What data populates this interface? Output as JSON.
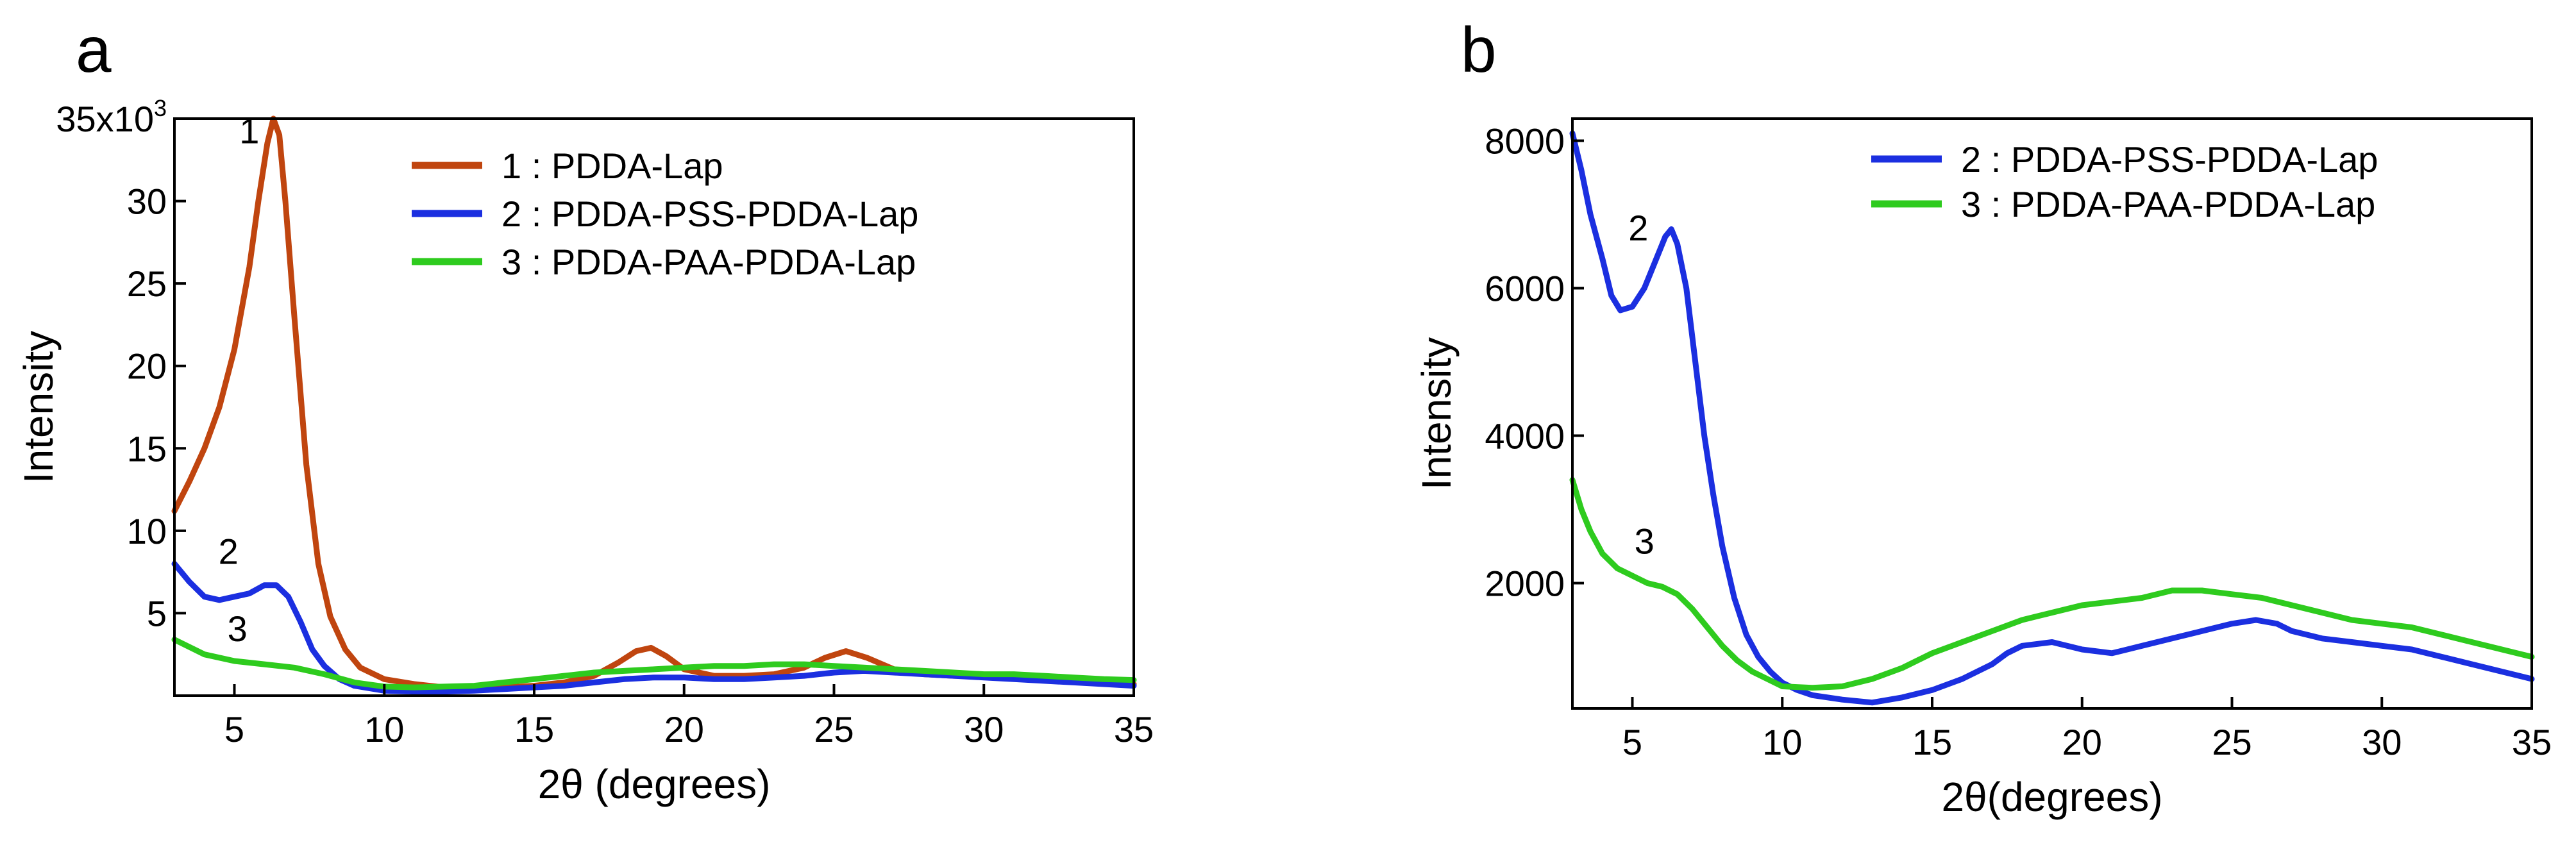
{
  "chart_data": [
    {
      "panel_label": "a",
      "type": "line",
      "xlabel_prefix": "2",
      "xlabel_symbol": "θ",
      "xlabel_suffix": " (degrees)",
      "ylabel": "Intensity",
      "xlim": [
        3,
        35
      ],
      "ylim": [
        0,
        35000
      ],
      "x_ticks": [
        5,
        10,
        15,
        20,
        25,
        30,
        35
      ],
      "x_tick_labels": [
        "5",
        "10",
        "15",
        "20",
        "25",
        "30",
        "35"
      ],
      "y_ticks": [
        5000,
        10000,
        15000,
        20000,
        25000,
        30000,
        35000
      ],
      "y_tick_labels": [
        "5",
        "10",
        "15",
        "20",
        "25",
        "30",
        "35x10"
      ],
      "y_exponent": "3",
      "legend_position": "top-right",
      "series": [
        {
          "name": "1 : PDDA-Lap",
          "curve_label": "1",
          "label_at": [
            5.5,
            33500
          ],
          "color": "#c0450f",
          "x": [
            3,
            3.5,
            4,
            4.5,
            5,
            5.5,
            5.8,
            6.1,
            6.3,
            6.5,
            6.7,
            7.0,
            7.4,
            7.8,
            8.2,
            8.7,
            9.2,
            10,
            11,
            12,
            13,
            14,
            15,
            16,
            17,
            17.8,
            18.4,
            18.9,
            19.4,
            20,
            21,
            22,
            23,
            24,
            24.7,
            25.4,
            26.1,
            27,
            28,
            29,
            30,
            31,
            32,
            33,
            34,
            35
          ],
          "y": [
            11200,
            13000,
            15000,
            17500,
            21000,
            26000,
            30000,
            33500,
            35000,
            34000,
            30000,
            23000,
            14000,
            8000,
            4800,
            2800,
            1700,
            1000,
            700,
            500,
            450,
            500,
            600,
            800,
            1200,
            2000,
            2700,
            2900,
            2400,
            1600,
            1200,
            1200,
            1300,
            1700,
            2300,
            2700,
            2300,
            1600,
            1300,
            1200,
            1200,
            1100,
            1000,
            900,
            800,
            700
          ]
        },
        {
          "name": "2 : PDDA-PSS-PDDA-Lap",
          "curve_label": "2",
          "label_at": [
            4.8,
            8000
          ],
          "color": "#1b2fe0",
          "x": [
            3,
            3.5,
            4,
            4.5,
            5,
            5.5,
            6,
            6.4,
            6.8,
            7.2,
            7.6,
            8,
            8.5,
            9,
            10,
            11,
            12,
            13,
            14,
            15,
            16,
            17,
            18,
            19,
            20,
            21,
            22,
            23,
            24,
            25,
            26,
            27,
            28,
            29,
            30,
            31,
            32,
            33,
            34,
            35
          ],
          "y": [
            8000,
            6900,
            6000,
            5800,
            6000,
            6200,
            6700,
            6700,
            6000,
            4500,
            2800,
            1800,
            1000,
            600,
            300,
            250,
            250,
            300,
            400,
            500,
            600,
            800,
            1000,
            1100,
            1100,
            1000,
            1000,
            1100,
            1200,
            1400,
            1500,
            1400,
            1300,
            1200,
            1100,
            1000,
            900,
            800,
            700,
            600
          ]
        },
        {
          "name": "3 : PDDA-PAA-PDDA-Lap",
          "curve_label": "3",
          "label_at": [
            5.1,
            3300
          ],
          "color": "#2ecb1e",
          "x": [
            3,
            4,
            5,
            6,
            7,
            8,
            9,
            10,
            11,
            12,
            13,
            14,
            15,
            16,
            17,
            18,
            19,
            20,
            21,
            22,
            23,
            24,
            25,
            26,
            27,
            28,
            29,
            30,
            31,
            32,
            33,
            34,
            35
          ],
          "y": [
            3400,
            2500,
            2100,
            1900,
            1700,
            1300,
            800,
            550,
            500,
            550,
            600,
            800,
            1000,
            1200,
            1400,
            1500,
            1600,
            1700,
            1800,
            1800,
            1900,
            1900,
            1800,
            1700,
            1600,
            1500,
            1400,
            1300,
            1300,
            1200,
            1100,
            1000,
            950
          ]
        }
      ]
    },
    {
      "panel_label": "b",
      "type": "line",
      "xlabel_prefix": "2",
      "xlabel_symbol": "θ",
      "xlabel_suffix": "(degrees)",
      "ylabel": "Intensity",
      "xlim": [
        3,
        35
      ],
      "ylim": [
        300,
        8300
      ],
      "x_ticks": [
        5,
        10,
        15,
        20,
        25,
        30,
        35
      ],
      "x_tick_labels": [
        "5",
        "10",
        "15",
        "20",
        "25",
        "30",
        "35"
      ],
      "y_ticks": [
        2000,
        4000,
        6000,
        8000
      ],
      "y_tick_labels": [
        "2000",
        "4000",
        "6000",
        "8000"
      ],
      "legend_position": "top-right",
      "series": [
        {
          "name": "2 : PDDA-PSS-PDDA-Lap",
          "curve_label": "2",
          "label_at": [
            5.2,
            6650
          ],
          "color": "#1b2fe0",
          "x": [
            3,
            3.3,
            3.6,
            4,
            4.3,
            4.6,
            5,
            5.4,
            5.8,
            6.1,
            6.3,
            6.5,
            6.8,
            7.1,
            7.4,
            7.7,
            8,
            8.4,
            8.8,
            9.2,
            9.6,
            10,
            10.5,
            11,
            12,
            13,
            14,
            15,
            16,
            17,
            17.5,
            18,
            19,
            20,
            21,
            22,
            23,
            24,
            25,
            25.8,
            26.5,
            27,
            28,
            29,
            30,
            31,
            32,
            33,
            34,
            35
          ],
          "y": [
            8100,
            7600,
            7000,
            6400,
            5900,
            5700,
            5750,
            6000,
            6400,
            6700,
            6800,
            6600,
            6000,
            5000,
            4000,
            3200,
            2500,
            1800,
            1300,
            1000,
            800,
            650,
            550,
            480,
            420,
            380,
            450,
            550,
            700,
            900,
            1050,
            1150,
            1200,
            1100,
            1050,
            1150,
            1250,
            1350,
            1450,
            1500,
            1450,
            1350,
            1250,
            1200,
            1150,
            1100,
            1000,
            900,
            800,
            700
          ]
        },
        {
          "name": "3 : PDDA-PAA-PDDA-Lap",
          "curve_label": "3",
          "label_at": [
            5.4,
            2400
          ],
          "color": "#2ecb1e",
          "x": [
            3,
            3.3,
            3.6,
            4,
            4.5,
            5,
            5.5,
            6,
            6.5,
            7,
            7.5,
            8,
            8.5,
            9,
            9.5,
            10,
            11,
            12,
            13,
            14,
            15,
            16,
            17,
            18,
            19,
            20,
            21,
            22,
            23,
            24,
            25,
            26,
            27,
            28,
            29,
            30,
            31,
            32,
            33,
            34,
            35
          ],
          "y": [
            3400,
            3000,
            2700,
            2400,
            2200,
            2100,
            2000,
            1950,
            1850,
            1650,
            1400,
            1150,
            950,
            800,
            700,
            600,
            580,
            600,
            700,
            850,
            1050,
            1200,
            1350,
            1500,
            1600,
            1700,
            1750,
            1800,
            1900,
            1900,
            1850,
            1800,
            1700,
            1600,
            1500,
            1450,
            1400,
            1300,
            1200,
            1100,
            1000
          ]
        }
      ]
    }
  ]
}
